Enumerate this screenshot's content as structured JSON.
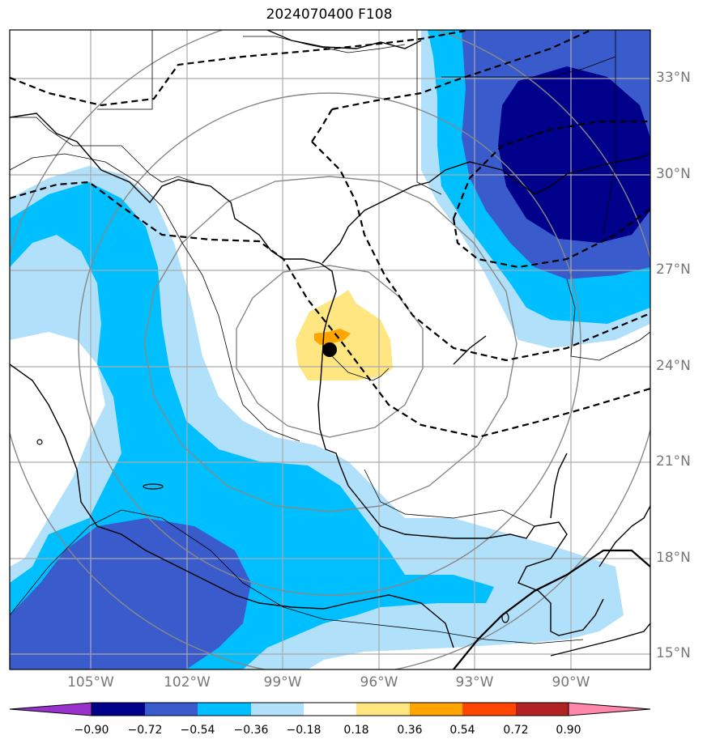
{
  "title": "2024070400 F108",
  "lat_labels": [
    "33°N",
    "30°N",
    "27°N",
    "24°N",
    "21°N",
    "18°N",
    "15°N"
  ],
  "lon_labels": [
    "105°W",
    "102°W",
    "99°W",
    "96°W",
    "93°W",
    "90°W"
  ],
  "colorbar": {
    "labels": [
      "−0.90",
      "−0.72",
      "−0.54",
      "−0.36",
      "−0.18",
      "0.18",
      "0.36",
      "0.54",
      "0.72",
      "0.90"
    ],
    "colors": [
      "#9932cc",
      "#00008b",
      "#3a5bcc",
      "#00bfff",
      "#b0e0fa",
      "#ffffff",
      "#ffe680",
      "#ffa500",
      "#ff4500",
      "#b22222",
      "#ff88aa"
    ]
  },
  "palette": {
    "darkblue": "#00008b",
    "royalblue": "#3a5bcc",
    "skyblue": "#00bfff",
    "lightblue": "#b0e0fa",
    "lightyellow": "#ffe680",
    "orange": "#ffa500"
  }
}
